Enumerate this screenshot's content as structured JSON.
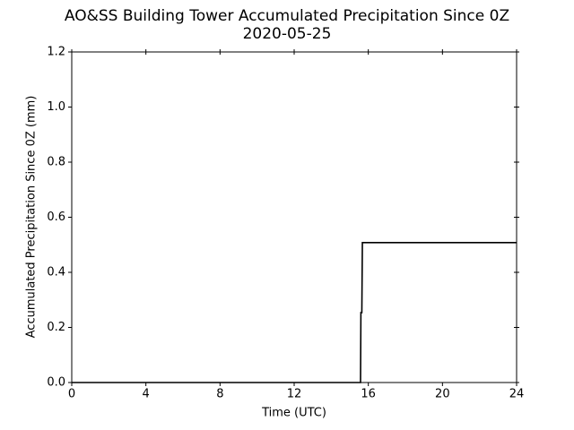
{
  "chart_data": {
    "type": "line",
    "title": "AO&SS Building Tower Accumulated Precipitation Since 0Z",
    "subtitle": "2020-05-25",
    "x_label": "Time (UTC)",
    "y_label": "Accumulated Precipitation Since 0Z (mm)",
    "x": [
      0,
      15.58,
      15.6,
      15.65,
      15.68,
      24
    ],
    "values": [
      0,
      0,
      0.254,
      0.254,
      0.508,
      0.508
    ],
    "color": "#000000",
    "xlim": [
      0,
      24
    ],
    "xticks": [
      0,
      4,
      8,
      12,
      16,
      20,
      24
    ],
    "ylim": [
      0,
      1.2
    ],
    "yticks": [
      {
        "value": 0,
        "label": "0.0"
      },
      {
        "value": 0.2,
        "label": "0.2"
      },
      {
        "value": 0.4,
        "label": "0.4"
      },
      {
        "value": 0.6,
        "label": "0.6"
      },
      {
        "value": 0.8,
        "label": "0.8"
      },
      {
        "value": 1.0,
        "label": "1.0"
      },
      {
        "value": 1.2,
        "label": "1.2"
      }
    ],
    "grid": false
  }
}
